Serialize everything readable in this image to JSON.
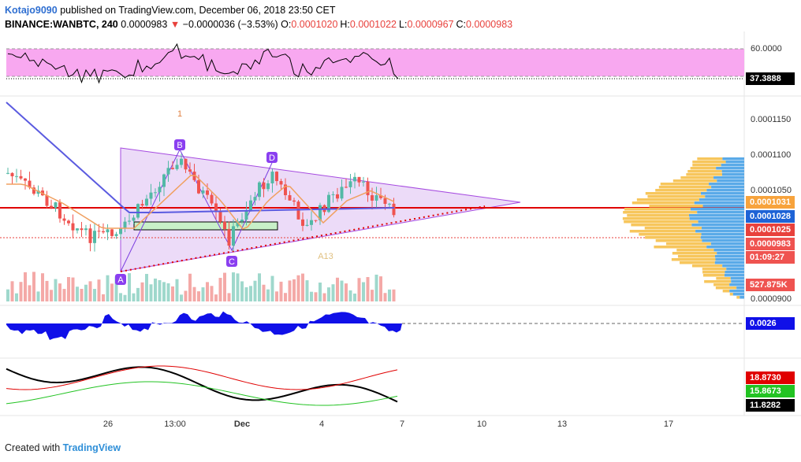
{
  "header": {
    "author": "Kotajo9090",
    "published": "published on TradingView.com, December 06, 2018 23:50 CET",
    "symbol": "BINANCE:WANBTC, 240",
    "last": "0.0000983",
    "arrow": "▼",
    "change": "−0.0000036 (−3.53%)",
    "ohlc": [
      {
        "label": "O:",
        "value": "0.0001020"
      },
      {
        "label": "H:",
        "value": "0.0001022"
      },
      {
        "label": "L:",
        "value": "0.0000967"
      },
      {
        "label": "C:",
        "value": "0.0000983"
      }
    ]
  },
  "rsi_axis": {
    "level": "60.0000",
    "current": "37.3888"
  },
  "price_axis": {
    "ticks": [
      "0.0001150",
      "0.0001100",
      "0.0001050",
      "0.0000900"
    ],
    "badges": [
      {
        "text": "0.0001031",
        "color": "#f7a33c"
      },
      {
        "text": "0.0001028",
        "color": "#1e63d6"
      },
      {
        "text": "0.0001025",
        "color": "#e8413c"
      },
      {
        "text": "0.0000983",
        "color": "#ef5350"
      },
      {
        "text": "01:09:27",
        "color": "#ef5350"
      },
      {
        "text": "527.875K",
        "color": "#ef5350"
      }
    ]
  },
  "macd_axis": {
    "current": "0.0026"
  },
  "dmi_axis": [
    {
      "text": "18.8730",
      "color": "#e00000"
    },
    {
      "text": "15.8673",
      "color": "#22c322"
    },
    {
      "text": "11.8282",
      "color": "#000000"
    }
  ],
  "pattern_labels": [
    "A",
    "B",
    "C",
    "D"
  ],
  "other_labels": {
    "a13": "A13",
    "one": "1"
  },
  "time_axis": [
    "26",
    "13:00",
    "Dec",
    "4",
    "7",
    "10",
    "13",
    "17"
  ],
  "footer": {
    "created": "Created with",
    "brand": "TradingView"
  }
}
